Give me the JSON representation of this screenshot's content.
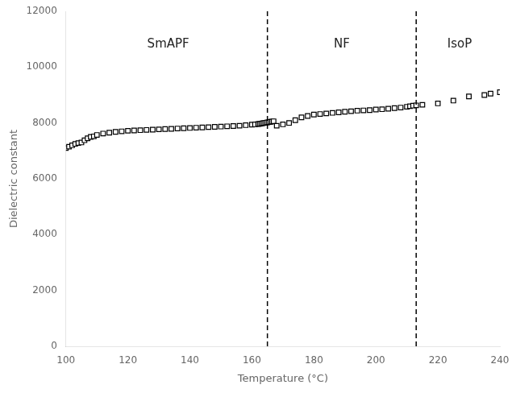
{
  "chart_data": {
    "type": "scatter",
    "xlabel": "Temperature (°C)",
    "ylabel": "Dielectric constant",
    "xlim": [
      100,
      240
    ],
    "ylim": [
      0,
      12000
    ],
    "xticks": [
      100,
      120,
      140,
      160,
      180,
      200,
      220,
      240
    ],
    "yticks": [
      0,
      2000,
      4000,
      6000,
      8000,
      10000,
      12000
    ],
    "grid": false,
    "x": [
      100,
      101,
      102,
      103,
      104,
      105,
      106,
      107,
      108,
      109,
      110,
      112,
      114,
      116,
      118,
      120,
      122,
      124,
      126,
      128,
      130,
      132,
      134,
      136,
      138,
      140,
      142,
      144,
      146,
      148,
      150,
      152,
      154,
      156,
      158,
      160,
      161,
      162,
      162.5,
      163,
      163.5,
      164,
      164.5,
      165,
      165.5,
      166,
      166.5,
      167,
      168,
      170,
      172,
      174,
      176,
      178,
      180,
      182,
      184,
      186,
      188,
      190,
      192,
      194,
      196,
      198,
      200,
      202,
      204,
      206,
      208,
      210,
      211,
      212,
      213,
      215,
      220,
      225,
      230,
      235,
      237,
      240
    ],
    "values": [
      7100,
      7150,
      7200,
      7250,
      7280,
      7300,
      7380,
      7450,
      7500,
      7520,
      7570,
      7620,
      7650,
      7680,
      7700,
      7720,
      7730,
      7740,
      7750,
      7760,
      7770,
      7780,
      7790,
      7800,
      7810,
      7820,
      7830,
      7840,
      7850,
      7860,
      7870,
      7880,
      7890,
      7900,
      7920,
      7940,
      7950,
      7960,
      7970,
      7980,
      7990,
      8000,
      8010,
      8020,
      8030,
      8040,
      8050,
      8060,
      7900,
      7950,
      8000,
      8100,
      8200,
      8250,
      8300,
      8320,
      8340,
      8360,
      8380,
      8400,
      8420,
      8440,
      8450,
      8460,
      8480,
      8490,
      8510,
      8530,
      8550,
      8580,
      8600,
      8620,
      8630,
      8650,
      8700,
      8800,
      8950,
      9000,
      9050,
      9100
    ],
    "marker": "square",
    "color": "#000000",
    "vlines": [
      165,
      213
    ],
    "annotations": [
      {
        "text": "SmAPF",
        "x": 133,
        "y": 10800
      },
      {
        "text": "NF",
        "x": 189,
        "y": 10800
      },
      {
        "text": "IsoP",
        "x": 227,
        "y": 10800
      }
    ]
  }
}
